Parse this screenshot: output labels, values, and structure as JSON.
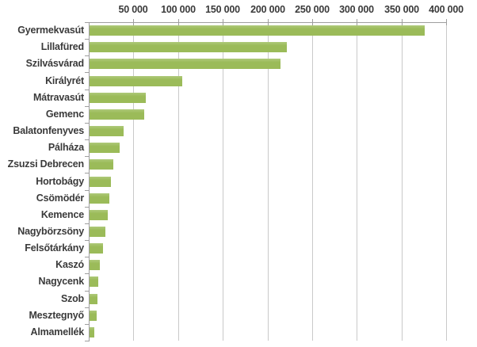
{
  "chart_data": {
    "type": "bar",
    "orientation": "horizontal",
    "title": "",
    "xlabel": "",
    "ylabel": "",
    "categories": [
      "Gyermekvasút",
      "Lillafüred",
      "Szilvásvárad",
      "Királyrét",
      "Mátravasút",
      "Gemenc",
      "Balatonfenyves",
      "Pálháza",
      "Zsuzsi Debrecen",
      "Hortobágy",
      "Csömödér",
      "Kemence",
      "Nagybörzsöny",
      "Felsőtárkány",
      "Kaszó",
      "Nagycenk",
      "Szob",
      "Mesztegnyő",
      "Almamellék"
    ],
    "values": [
      376000,
      222000,
      215000,
      105000,
      64000,
      62000,
      39000,
      35000,
      27500,
      25000,
      23000,
      21000,
      19000,
      16000,
      12500,
      11000,
      10000,
      9000,
      6500
    ],
    "xlim": [
      0,
      400000
    ],
    "xticks": [
      {
        "value": 50000,
        "label": "50 000"
      },
      {
        "value": 100000,
        "label": "100 000"
      },
      {
        "value": 150000,
        "label": "150 000"
      },
      {
        "value": 200000,
        "label": "200 000"
      },
      {
        "value": 250000,
        "label": "250 000"
      },
      {
        "value": 300000,
        "label": "300 000"
      },
      {
        "value": 350000,
        "label": "350 000"
      },
      {
        "value": 400000,
        "label": "400 000"
      }
    ],
    "grid": true,
    "legend": "none",
    "value_axis_position": "top",
    "colors": {
      "bar": "#9BBB59",
      "bar_highlight": "#aec97a",
      "gridline": "#c9c9c9",
      "axis": "#9e9e9e",
      "text": "#3a3a3a",
      "background": "#ffffff"
    }
  }
}
